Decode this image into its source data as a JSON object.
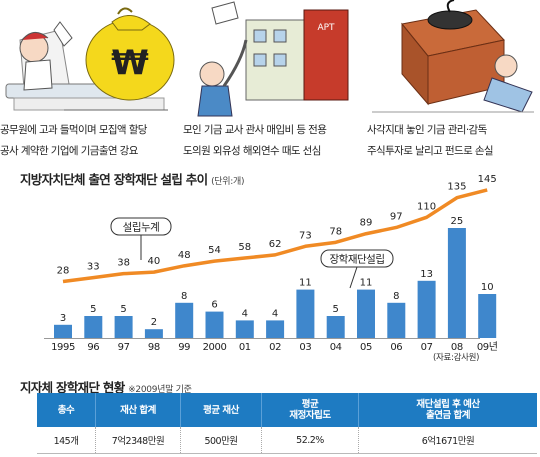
{
  "captions": [
    [
      "공무원에 고과 들먹이며 모집액 할당",
      "공사 계약한 기업에 기금출연 강요"
    ],
    [
      "모인 기금 교사 관사 매입비 등 전용",
      "도의원 외유성 해외연수 때도 선심"
    ],
    [
      "사각지대 놓인 기금 관리·감독",
      "주식투자로 날리고 펀드로 손실"
    ]
  ],
  "illustration_text": {
    "won_symbol": "₩",
    "apt_sign": "APT"
  },
  "chart_title": "지방자치단체 출연 장학재단 설립 추이",
  "chart_unit": "(단위:개)",
  "source": "(자료:감사원)",
  "chart_data": {
    "type": "bar+line",
    "categories": [
      "1995",
      "96",
      "97",
      "98",
      "99",
      "2000",
      "01",
      "02",
      "03",
      "04",
      "05",
      "06",
      "07",
      "08",
      "09년"
    ],
    "series": [
      {
        "name": "장학재단설립",
        "type": "bar",
        "values": [
          3,
          5,
          5,
          2,
          8,
          6,
          4,
          4,
          11,
          5,
          11,
          8,
          13,
          25,
          10
        ],
        "color": "#3f87cc"
      },
      {
        "name": "설립누계",
        "type": "line",
        "values": [
          28,
          33,
          38,
          40,
          48,
          54,
          58,
          62,
          73,
          78,
          89,
          97,
          110,
          135,
          145
        ],
        "color": "#f08a24"
      }
    ],
    "title": "지방자치단체 출연 장학재단 설립 추이",
    "unit": "(단위:개)"
  },
  "table_title": "지자체 장학재단 현황",
  "table_note": "※2009년말 기준",
  "table": {
    "headers": [
      "총수",
      "재산 합계",
      "평균 재산",
      "평균 재정자립도",
      "재단설립 후 예산 출연금 합계"
    ],
    "header_lines": [
      [
        "총수"
      ],
      [
        "재산 합계"
      ],
      [
        "평균 재산"
      ],
      [
        "평균",
        "재정자립도"
      ],
      [
        "재단설립 후 예산",
        "출연금 합계"
      ]
    ],
    "row": [
      "145개",
      "7억2348만원",
      "500만원",
      "52.2%",
      "6억1671만원"
    ]
  },
  "colors": {
    "bar": "#3f87cc",
    "line": "#f08a24",
    "table_header": "#1e7bc2"
  }
}
